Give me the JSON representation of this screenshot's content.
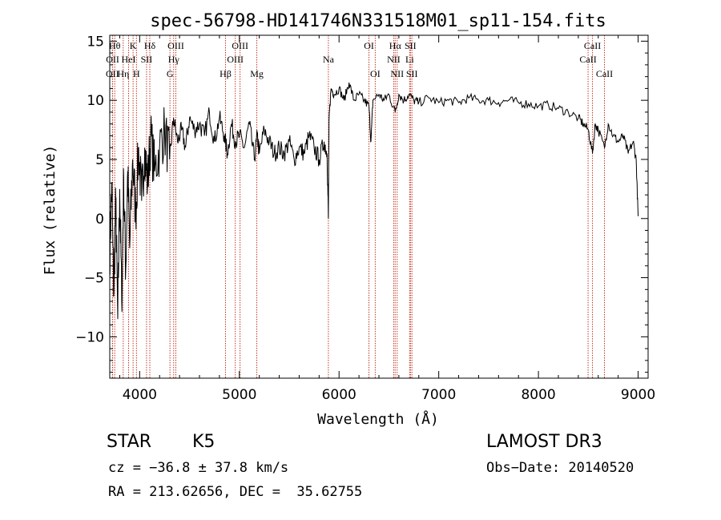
{
  "chart_data": {
    "type": "line",
    "title": "spec-56798-HD141746N331518M01_sp11-154.fits",
    "xlabel": "Wavelength (Å)",
    "ylabel": "Flux (relative)",
    "xlim": [
      3700,
      9100
    ],
    "ylim": [
      -13.5,
      15.5
    ],
    "x_ticks": [
      4000,
      5000,
      6000,
      7000,
      8000,
      9000
    ],
    "x_tick_labels": [
      "4000",
      "5000",
      "6000",
      "7000",
      "8000",
      "9000"
    ],
    "y_ticks": [
      -10,
      -5,
      0,
      5,
      10,
      15
    ],
    "y_tick_labels": [
      "−10",
      "−5",
      "0",
      "5",
      "10",
      "15"
    ],
    "series": [
      {
        "name": "flux",
        "x": [
          3700,
          3720,
          3740,
          3760,
          3780,
          3800,
          3820,
          3840,
          3860,
          3880,
          3900,
          3930,
          3960,
          3990,
          4020,
          4050,
          4080,
          4110,
          4150,
          4200,
          4250,
          4300,
          4340,
          4380,
          4420,
          4460,
          4500,
          4550,
          4600,
          4650,
          4700,
          4750,
          4800,
          4850,
          4880,
          4920,
          4960,
          5000,
          5050,
          5100,
          5150,
          5180,
          5200,
          5250,
          5300,
          5350,
          5400,
          5450,
          5500,
          5550,
          5600,
          5650,
          5700,
          5750,
          5800,
          5850,
          5880,
          5893,
          5900,
          5920,
          5950,
          6000,
          6050,
          6100,
          6150,
          6200,
          6250,
          6300,
          6320,
          6340,
          6400,
          6450,
          6500,
          6563,
          6600,
          6650,
          6700,
          6750,
          6800,
          6900,
          7000,
          7100,
          7200,
          7300,
          7400,
          7500,
          7600,
          7700,
          7800,
          7900,
          8000,
          8100,
          8200,
          8300,
          8400,
          8450,
          8500,
          8542,
          8570,
          8600,
          8662,
          8700,
          8750,
          8800,
          8850,
          8900,
          8950,
          8980,
          9000
        ],
        "y": [
          -3.0,
          3.0,
          -6.5,
          1.5,
          -8.5,
          2.5,
          -7.0,
          3.5,
          -4.5,
          4.0,
          -2.5,
          5.0,
          0.5,
          6.0,
          1.5,
          6.0,
          3.0,
          7.0,
          4.0,
          6.0,
          7.5,
          5.0,
          8.5,
          6.5,
          7.5,
          6.0,
          8.5,
          7.5,
          8.0,
          7.0,
          9.0,
          6.5,
          8.5,
          7.0,
          5.5,
          8.0,
          6.5,
          7.0,
          6.0,
          8.0,
          5.0,
          7.0,
          5.5,
          7.5,
          6.5,
          5.5,
          6.0,
          5.5,
          6.5,
          5.0,
          6.0,
          5.5,
          7.0,
          6.0,
          5.0,
          6.5,
          5.5,
          0.0,
          8.5,
          11.0,
          10.5,
          11.0,
          10.0,
          11.5,
          10.0,
          10.5,
          10.0,
          9.5,
          6.5,
          10.0,
          10.5,
          10.0,
          10.5,
          9.0,
          10.5,
          10.0,
          10.5,
          10.0,
          9.8,
          10.2,
          9.8,
          10.0,
          9.8,
          10.2,
          10.0,
          10.0,
          9.8,
          10.0,
          9.8,
          9.7,
          9.5,
          9.6,
          9.3,
          9.0,
          8.5,
          8.0,
          7.5,
          5.5,
          8.0,
          7.5,
          6.0,
          8.0,
          7.0,
          6.5,
          7.0,
          5.5,
          6.5,
          5.0,
          0.2
        ]
      }
    ],
    "spectral_lines": [
      {
        "label": "OII",
        "x": 3727,
        "row": 2
      },
      {
        "label": "Hθ",
        "x": 3750,
        "row": 0
      },
      {
        "label": "OII",
        "x": 3729,
        "row": 1
      },
      {
        "label": "Hη",
        "x": 3835,
        "row": 2
      },
      {
        "label": "HeI",
        "x": 3889,
        "row": 1
      },
      {
        "label": "K",
        "x": 3934,
        "row": 0
      },
      {
        "label": "H",
        "x": 3968,
        "row": 2
      },
      {
        "label": "SII",
        "x": 4069,
        "row": 1
      },
      {
        "label": "Hδ",
        "x": 4102,
        "row": 0
      },
      {
        "label": "G",
        "x": 4304,
        "row": 2
      },
      {
        "label": "OIII",
        "x": 4363,
        "row": 0
      },
      {
        "label": "Hγ",
        "x": 4341,
        "row": 1
      },
      {
        "label": "Hβ",
        "x": 4861,
        "row": 2
      },
      {
        "label": "OIII",
        "x": 5007,
        "row": 0
      },
      {
        "label": "OIII",
        "x": 4959,
        "row": 1
      },
      {
        "label": "Mg",
        "x": 5175,
        "row": 2
      },
      {
        "label": "Na",
        "x": 5893,
        "row": 1
      },
      {
        "label": "OI",
        "x": 6300,
        "row": 0
      },
      {
        "label": "OI",
        "x": 6363,
        "row": 2
      },
      {
        "label": "Hα",
        "x": 6563,
        "row": 0
      },
      {
        "label": "NII",
        "x": 6548,
        "row": 1
      },
      {
        "label": "NII",
        "x": 6583,
        "row": 2
      },
      {
        "label": "SII",
        "x": 6716,
        "row": 0
      },
      {
        "label": "Li",
        "x": 6708,
        "row": 1
      },
      {
        "label": "SII",
        "x": 6731,
        "row": 2
      },
      {
        "label": "CaII",
        "x": 8542,
        "row": 0
      },
      {
        "label": "CaII",
        "x": 8498,
        "row": 1
      },
      {
        "label": "CaII",
        "x": 8662,
        "row": 2
      }
    ]
  },
  "info": {
    "object_class": "STAR",
    "subclass": "K5",
    "survey": "LAMOST DR3",
    "cz": "cz = −36.8 ± 37.8 km/s",
    "obs_date": "Obs−Date: 20140520",
    "coords": "RA = 213.62656, DEC =  35.62755"
  }
}
